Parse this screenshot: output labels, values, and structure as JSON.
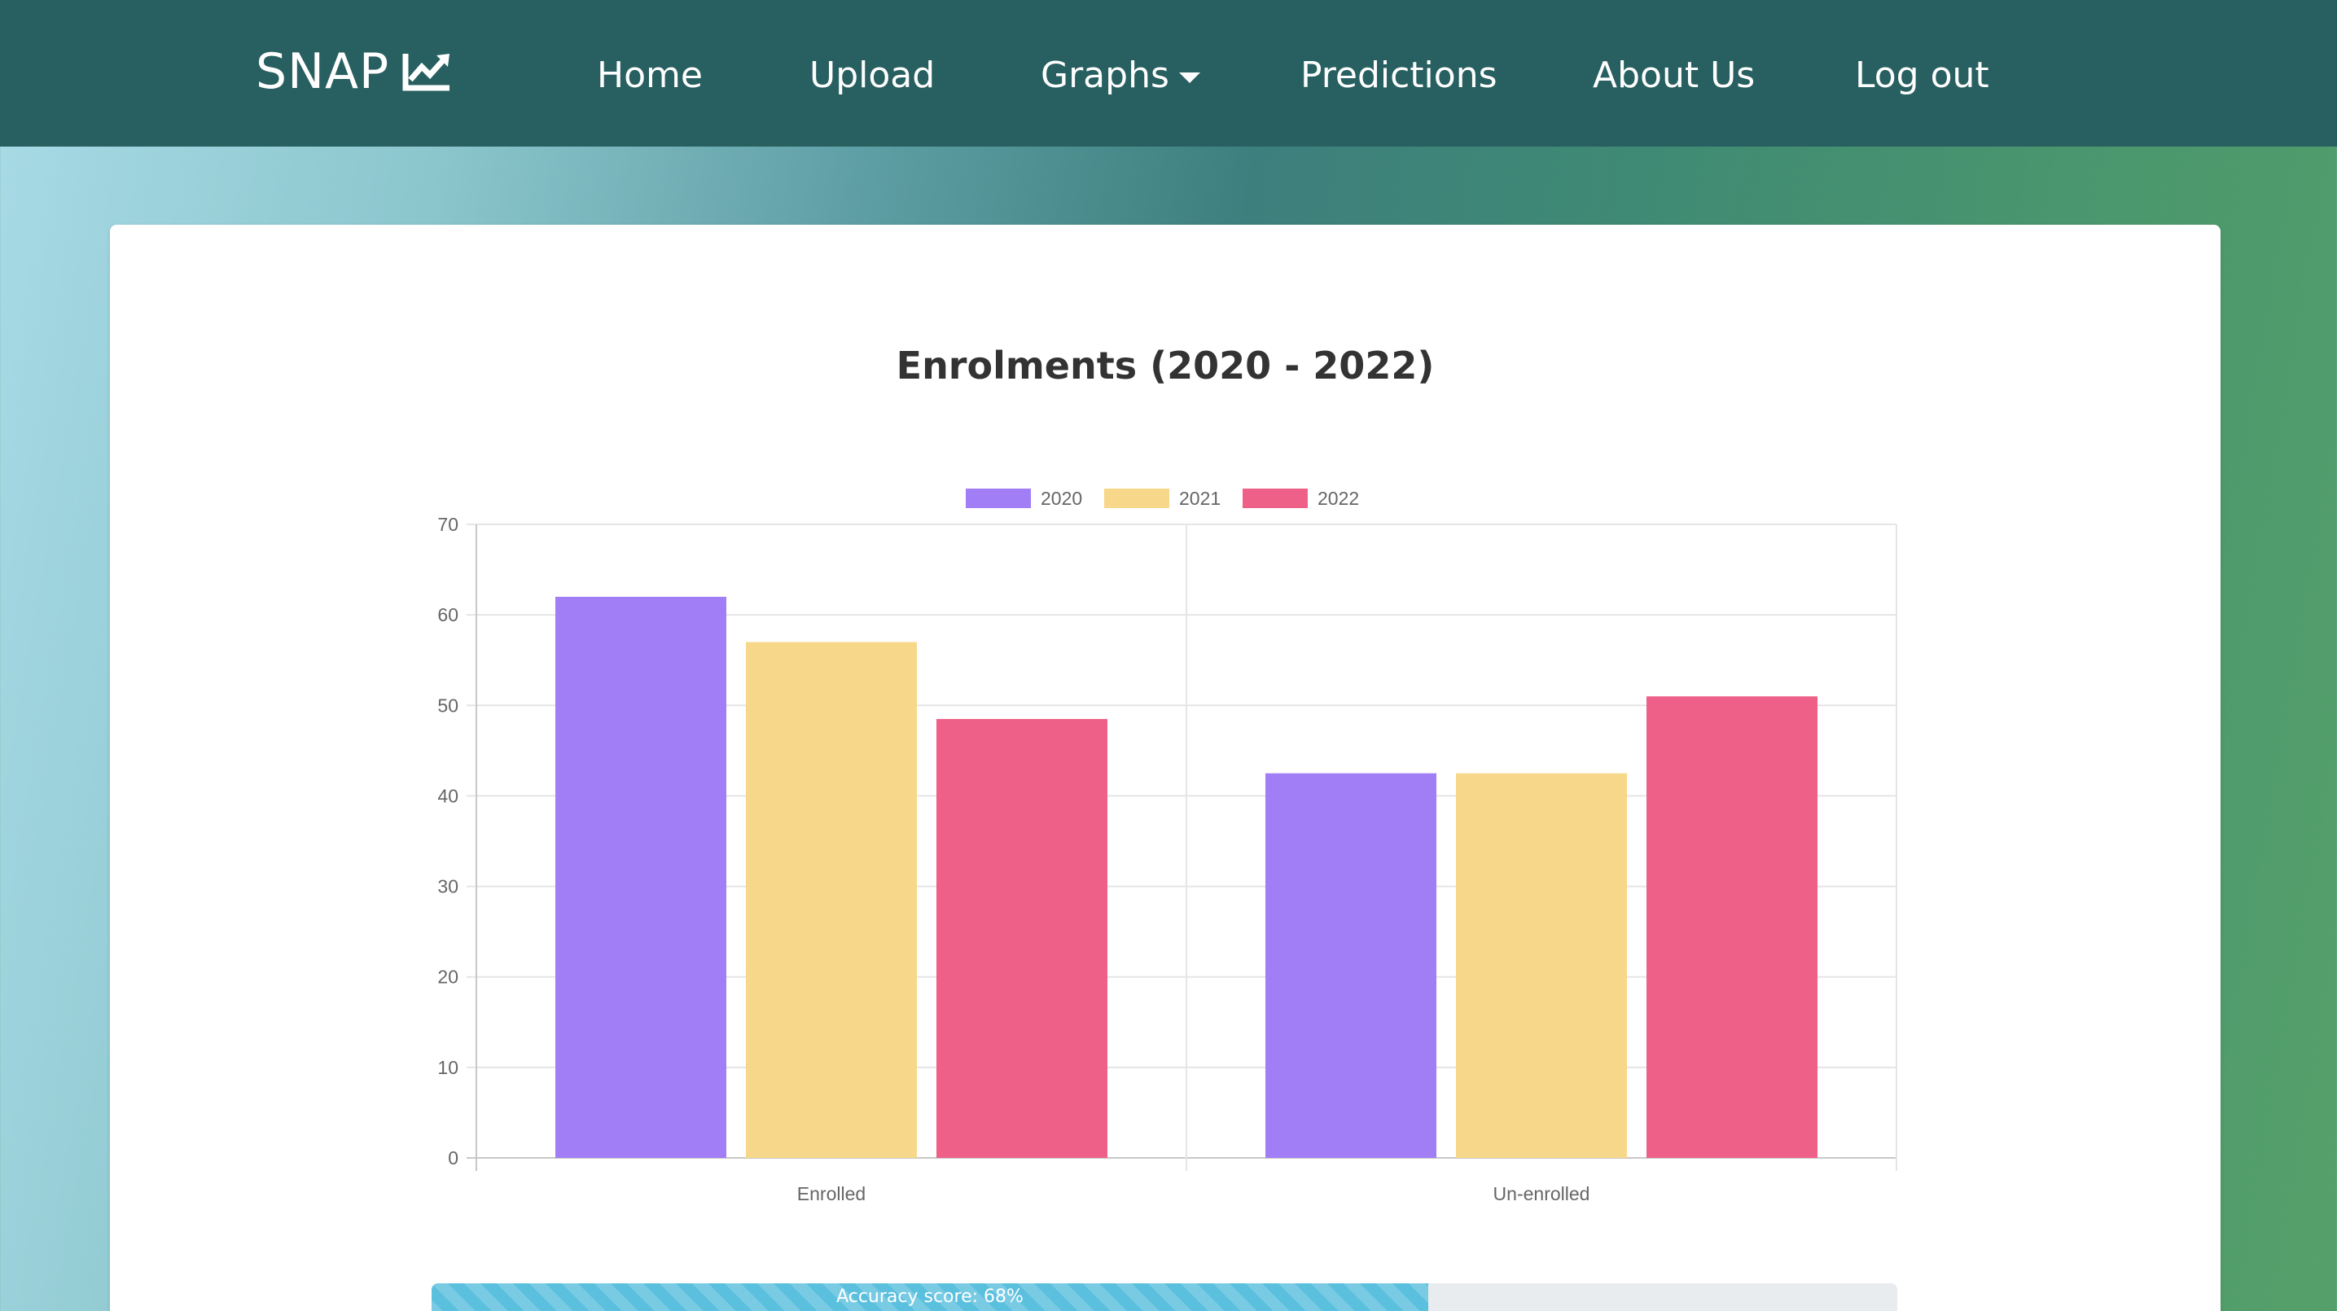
{
  "navbar": {
    "brand": "SNAP",
    "brand_icon": "chart-line-icon",
    "items": [
      {
        "label": "Home"
      },
      {
        "label": "Upload"
      },
      {
        "label": "Graphs",
        "icon": "caret-down-icon"
      },
      {
        "label": "Predictions"
      },
      {
        "label": "About Us"
      },
      {
        "label": "Log out"
      }
    ]
  },
  "colors": {
    "navbar": "#285f60",
    "series_2020": "#a17ef5",
    "series_2021": "#f7d88a",
    "series_2022": "#ee6088",
    "progress": "#5bc0de"
  },
  "chart_data": {
    "type": "bar",
    "title": "Enrolments (2020 - 2022)",
    "categories": [
      "Enrolled",
      "Un-enrolled"
    ],
    "series": [
      {
        "name": "2020",
        "values": [
          62,
          42.5
        ]
      },
      {
        "name": "2021",
        "values": [
          57,
          42.5
        ]
      },
      {
        "name": "2022",
        "values": [
          48.5,
          51
        ]
      }
    ],
    "ylim": [
      0,
      70
    ],
    "yticks": [
      "0",
      "10",
      "20",
      "30",
      "40",
      "50",
      "60",
      "70"
    ],
    "legend": "top",
    "grid": true,
    "xlabel": "",
    "ylabel": ""
  },
  "accuracy": {
    "label": "Accuracy score: 68%",
    "percent": 68
  }
}
